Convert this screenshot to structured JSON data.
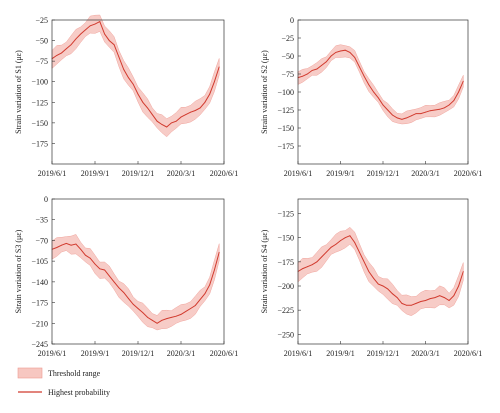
{
  "colors": {
    "band_fill": "#f7c7c1",
    "band_stroke": "#ee9a92",
    "line": "#d13a2e",
    "axis": "#333333"
  },
  "legend": {
    "threshold_label": "Threshold range",
    "highest_label": "Highest probability"
  },
  "chart_data": [
    {
      "type": "line",
      "ylabel": "Strain variation of S1 (με)",
      "xticks": [
        "2019/6/1",
        "2019/9/1",
        "2019/12/1",
        "2020/3/1",
        "2020/6/1"
      ],
      "ylim": [
        -200,
        -25
      ],
      "yticks": [
        -25,
        -50,
        -75,
        -100,
        -125,
        -150,
        -175
      ],
      "x": [
        0,
        0.25,
        0.5,
        0.75,
        1,
        1.25,
        1.5,
        1.75,
        2,
        2.25,
        2.5,
        2.75,
        3,
        3.25,
        3.5,
        3.75,
        4,
        4.25,
        4.5,
        4.75,
        5,
        5.25,
        5.5,
        5.75,
        6,
        6.25,
        6.5,
        6.75,
        7,
        7.25,
        7.5,
        7.75,
        8,
        8.25,
        8.5,
        8.75
      ],
      "series": [
        {
          "values": [
            -72,
            -68,
            -65,
            -60,
            -55,
            -48,
            -42,
            -37,
            -32,
            -30,
            -27,
            -42,
            -50,
            -55,
            -70,
            -85,
            -95,
            -103,
            -115,
            -125,
            -132,
            -140,
            -148,
            -152,
            -155,
            -150,
            -148,
            -143,
            -140,
            -137,
            -135,
            -132,
            -125,
            -115,
            -100,
            -82
          ]
        }
      ],
      "band_halfwidth": 10
    },
    {
      "type": "line",
      "ylabel": "Strain variation of S2 (με)",
      "xticks": [
        "2019/6/1",
        "2019/9/1",
        "2019/12/1",
        "2020/3/1",
        "2020/6/1"
      ],
      "ylim": [
        -200,
        0
      ],
      "yticks": [
        0,
        -25,
        -50,
        -75,
        -100,
        -125,
        -150,
        -175
      ],
      "x": [
        0,
        0.25,
        0.5,
        0.75,
        1,
        1.25,
        1.5,
        1.75,
        2,
        2.25,
        2.5,
        2.75,
        3,
        3.25,
        3.5,
        3.75,
        4,
        4.25,
        4.5,
        4.75,
        5,
        5.25,
        5.5,
        5.75,
        6,
        6.25,
        6.5,
        6.75,
        7,
        7.25,
        7.5,
        7.75,
        8,
        8.25,
        8.5,
        8.75
      ],
      "series": [
        {
          "values": [
            -80,
            -78,
            -75,
            -70,
            -68,
            -63,
            -58,
            -50,
            -45,
            -43,
            -42,
            -45,
            -52,
            -65,
            -78,
            -90,
            -100,
            -108,
            -118,
            -125,
            -132,
            -136,
            -138,
            -136,
            -133,
            -130,
            -130,
            -128,
            -126,
            -125,
            -124,
            -122,
            -118,
            -112,
            -100,
            -85
          ]
        }
      ],
      "band_halfwidth": 8
    },
    {
      "type": "line",
      "ylabel": "Strain variation of S3 (με)",
      "xticks": [
        "2019/6/1",
        "2019/9/1",
        "2019/12/1",
        "2020/3/1",
        "2020/6/1"
      ],
      "ylim": [
        -245,
        0
      ],
      "yticks": [
        0,
        -35,
        -70,
        -105,
        -140,
        -175,
        -210,
        -245
      ],
      "x": [
        0,
        0.25,
        0.5,
        0.75,
        1,
        1.25,
        1.5,
        1.75,
        2,
        2.25,
        2.5,
        2.75,
        3,
        3.25,
        3.5,
        3.75,
        4,
        4.25,
        4.5,
        4.75,
        5,
        5.25,
        5.5,
        5.75,
        6,
        6.25,
        6.5,
        6.75,
        7,
        7.25,
        7.5,
        7.75,
        8,
        8.25,
        8.5,
        8.75
      ],
      "series": [
        {
          "values": [
            -85,
            -82,
            -78,
            -75,
            -78,
            -76,
            -85,
            -95,
            -100,
            -110,
            -118,
            -120,
            -130,
            -140,
            -150,
            -158,
            -168,
            -178,
            -185,
            -192,
            -200,
            -205,
            -210,
            -205,
            -202,
            -200,
            -198,
            -195,
            -190,
            -185,
            -180,
            -170,
            -160,
            -145,
            -120,
            -90
          ]
        }
      ],
      "band_halfwidth": 14
    },
    {
      "type": "line",
      "ylabel": "Strain variation of S4 (με)",
      "xticks": [
        "2019/6/1",
        "2019/9/1",
        "2019/12/1",
        "2020/3/1",
        "2020/6/1"
      ],
      "ylim": [
        -260,
        -110
      ],
      "yticks": [
        -125,
        -150,
        -175,
        -200,
        -225,
        -250
      ],
      "x": [
        0,
        0.25,
        0.5,
        0.75,
        1,
        1.25,
        1.5,
        1.75,
        2,
        2.25,
        2.5,
        2.75,
        3,
        3.25,
        3.5,
        3.75,
        4,
        4.25,
        4.5,
        4.75,
        5,
        5.25,
        5.5,
        5.75,
        6,
        6.25,
        6.5,
        6.75,
        7,
        7.25,
        7.5,
        7.75,
        8,
        8.25,
        8.5,
        8.75
      ],
      "series": [
        {
          "values": [
            -185,
            -182,
            -180,
            -178,
            -175,
            -170,
            -165,
            -160,
            -157,
            -153,
            -150,
            -148,
            -155,
            -165,
            -175,
            -185,
            -192,
            -198,
            -200,
            -203,
            -208,
            -212,
            -218,
            -220,
            -220,
            -218,
            -216,
            -215,
            -213,
            -212,
            -210,
            -212,
            -215,
            -210,
            -200,
            -185
          ]
        }
      ],
      "band_halfwidth": 9
    }
  ]
}
